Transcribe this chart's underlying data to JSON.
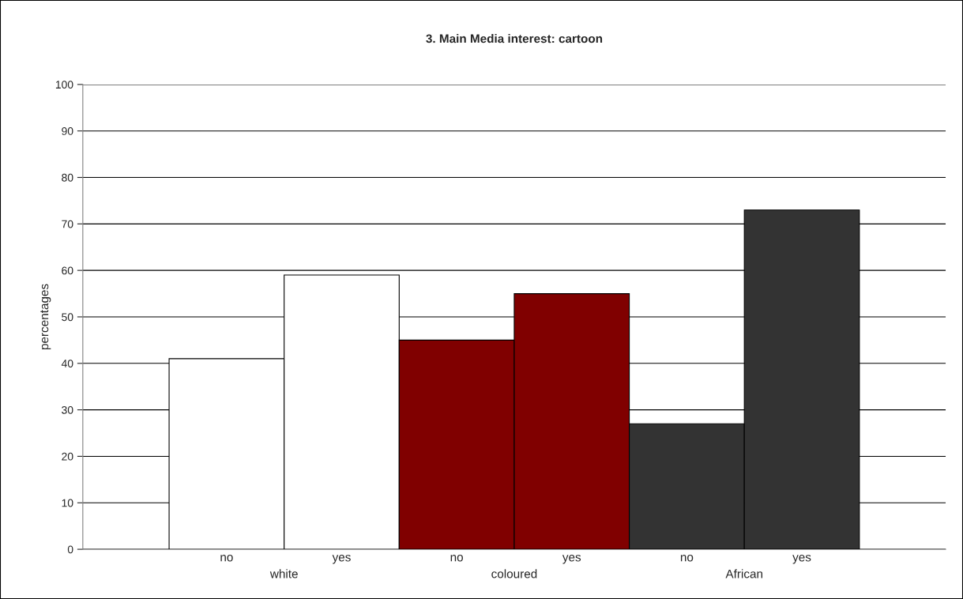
{
  "chart_data": {
    "type": "bar",
    "title": "3. Main Media interest: cartoon",
    "ylabel": "percentages",
    "categories": [
      "no",
      "yes",
      "no",
      "yes",
      "no",
      "yes"
    ],
    "values": [
      41,
      59,
      45,
      55,
      27,
      73
    ],
    "colors": [
      "#ffffff",
      "#ffffff",
      "#800000",
      "#800000",
      "#333333",
      "#333333"
    ],
    "annotations": [
      "white",
      "coloured",
      "African"
    ],
    "ylim": [
      0,
      100
    ],
    "yticks": [
      0,
      10,
      20,
      30,
      40,
      50,
      60,
      70,
      80,
      90,
      100
    ],
    "grid": "y",
    "legend": false
  }
}
